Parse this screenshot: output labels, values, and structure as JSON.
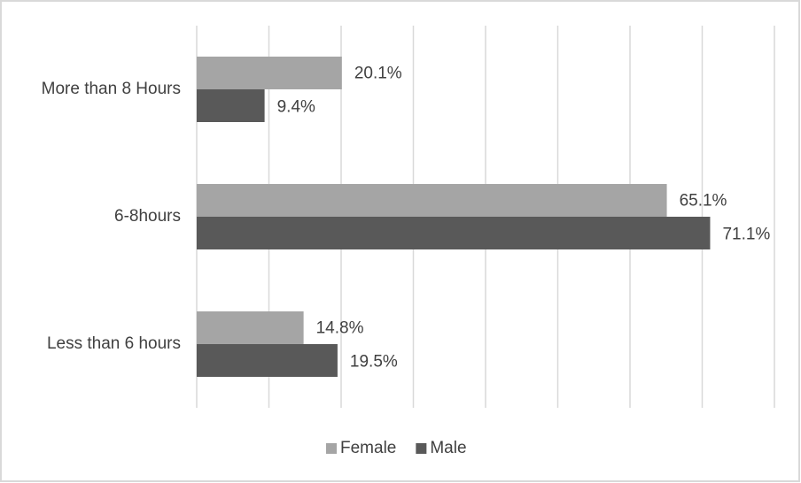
{
  "chart_data": {
    "type": "barh",
    "categories": [
      "More than 8 Hours",
      "6-8hours",
      "Less than 6 hours"
    ],
    "series": [
      {
        "name": "Female",
        "color": "#a5a5a5",
        "values": [
          20.1,
          65.1,
          14.8
        ],
        "value_labels": [
          "20.1%",
          "65.1%",
          "14.8%"
        ]
      },
      {
        "name": "Male",
        "color": "#595959",
        "values": [
          9.4,
          71.1,
          19.5
        ],
        "value_labels": [
          "9.4%",
          "71.1%",
          "19.5%"
        ]
      }
    ],
    "xlim": [
      0,
      80
    ],
    "xticks": [
      0,
      10,
      20,
      30,
      40,
      50,
      60,
      70,
      80
    ],
    "grid": true,
    "legend": "bottom"
  }
}
